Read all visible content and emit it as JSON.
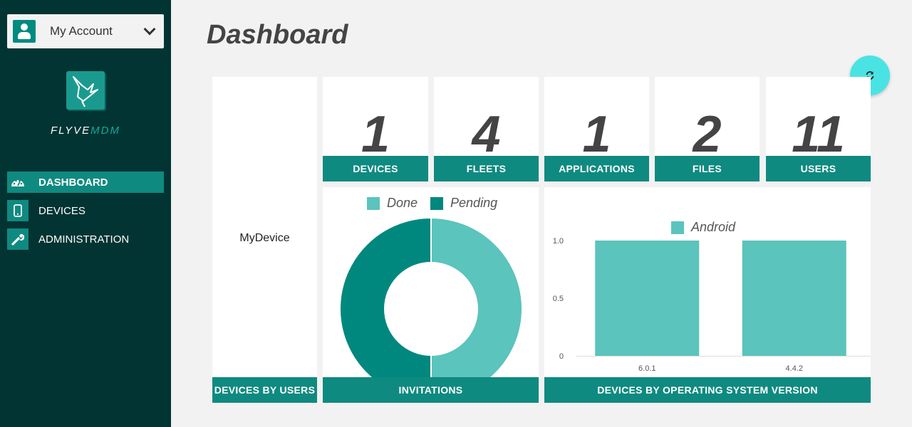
{
  "account": {
    "label": "My Account"
  },
  "brand": {
    "flyve": "FLYVE",
    "mdm": "MDM"
  },
  "nav": [
    {
      "label": "DASHBOARD",
      "icon": "dashboard-icon",
      "active": true
    },
    {
      "label": "DEVICES",
      "icon": "device-icon",
      "active": false
    },
    {
      "label": "ADMINISTRATION",
      "icon": "wrench-icon",
      "active": false
    }
  ],
  "page_title": "Dashboard",
  "stats": [
    {
      "value": "1",
      "label": "DEVICES"
    },
    {
      "value": "4",
      "label": "FLEETS"
    },
    {
      "value": "1",
      "label": "APPLICATIONS"
    },
    {
      "value": "2",
      "label": "FILES"
    },
    {
      "value": "11",
      "label": "USERS"
    }
  ],
  "devices_by_users": {
    "label": "DEVICES BY USERS",
    "user": "MyDevice"
  },
  "invitations": {
    "label": "INVITATIONS"
  },
  "os_versions": {
    "label": "DEVICES BY OPERATING SYSTEM VERSION"
  },
  "colors": {
    "accent": "#0f8a80",
    "sidebar": "#013432",
    "done": "#5bc4bc",
    "pending": "#00887f",
    "refresh": "#4ae3e3"
  },
  "chart_data": [
    {
      "type": "pie",
      "legend": [
        "Done",
        "Pending"
      ],
      "labels": [
        "Done",
        "Pending"
      ],
      "values": [
        50,
        50
      ],
      "legend_position": "top"
    },
    {
      "type": "bar",
      "legend": [
        "Android"
      ],
      "categories": [
        "6.0.1",
        "4.4.2"
      ],
      "series": [
        {
          "name": "Android",
          "values": [
            1,
            1
          ]
        }
      ],
      "yticks": [
        "1.0",
        "0.5",
        "0"
      ],
      "ylim": [
        0,
        1
      ],
      "legend_position": "top"
    }
  ]
}
